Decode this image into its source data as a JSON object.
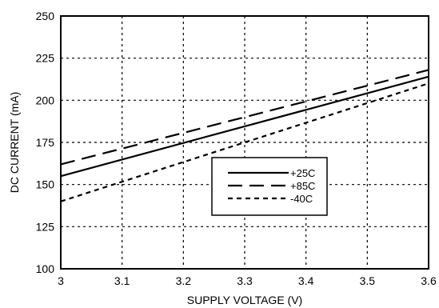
{
  "chart_data": {
    "type": "line",
    "title": "",
    "xlabel": "SUPPLY VOLTAGE (V)",
    "ylabel": "DC CURRENT (mA)",
    "xlim": [
      3.0,
      3.6
    ],
    "ylim": [
      100,
      250
    ],
    "xticks": [
      3.0,
      3.1,
      3.2,
      3.3,
      3.4,
      3.5,
      3.6
    ],
    "xtick_labels": [
      "3",
      "3.1",
      "3.2",
      "3.3",
      "3.4",
      "3.5",
      "3.6"
    ],
    "yticks": [
      100,
      125,
      150,
      175,
      200,
      225,
      250
    ],
    "ytick_labels": [
      "100",
      "125",
      "150",
      "175",
      "200",
      "225",
      "250"
    ],
    "grid": true,
    "legend_position": "center-right",
    "series": [
      {
        "name": "+25C",
        "style": "solid",
        "x": [
          3.0,
          3.6
        ],
        "y": [
          155,
          214
        ]
      },
      {
        "name": "+85C",
        "style": "long-dash",
        "x": [
          3.0,
          3.6
        ],
        "y": [
          162,
          218
        ]
      },
      {
        "name": "-40C",
        "style": "short-dash",
        "x": [
          3.0,
          3.6
        ],
        "y": [
          140,
          210
        ]
      }
    ]
  }
}
